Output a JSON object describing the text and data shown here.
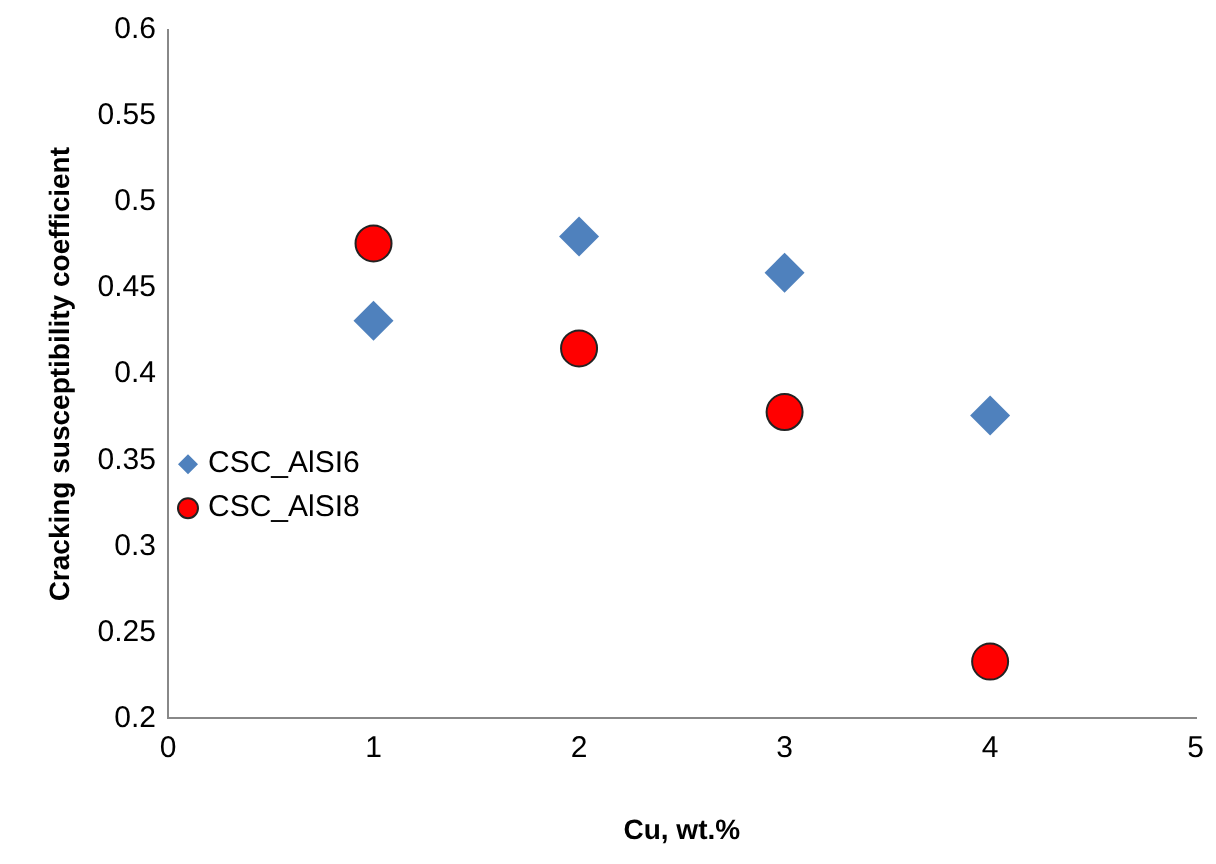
{
  "chart_data": {
    "type": "scatter",
    "xlabel": "Cu, wt.%",
    "ylabel": "Cracking susceptibility coefficient",
    "series": [
      {
        "name": "CSC_AlSI6",
        "color": "#4f81bd",
        "marker": "diamond",
        "x": [
          1,
          2,
          3,
          4
        ],
        "values": [
          0.431,
          0.48,
          0.459,
          0.376
        ]
      },
      {
        "name": "CSC_AlSI8",
        "color": "#ff0000",
        "marker": "circle",
        "x": [
          1,
          2,
          3,
          4
        ],
        "values": [
          0.476,
          0.415,
          0.378,
          0.233
        ]
      }
    ],
    "xlim": [
      0,
      5
    ],
    "xticks": [
      0,
      1,
      2,
      3,
      4,
      5
    ],
    "ylim": [
      0.2,
      0.6
    ],
    "yticks": [
      0.2,
      0.25,
      0.3,
      0.35,
      0.4,
      0.45,
      0.5,
      0.55,
      0.6
    ],
    "grid": false,
    "legend": "left"
  }
}
